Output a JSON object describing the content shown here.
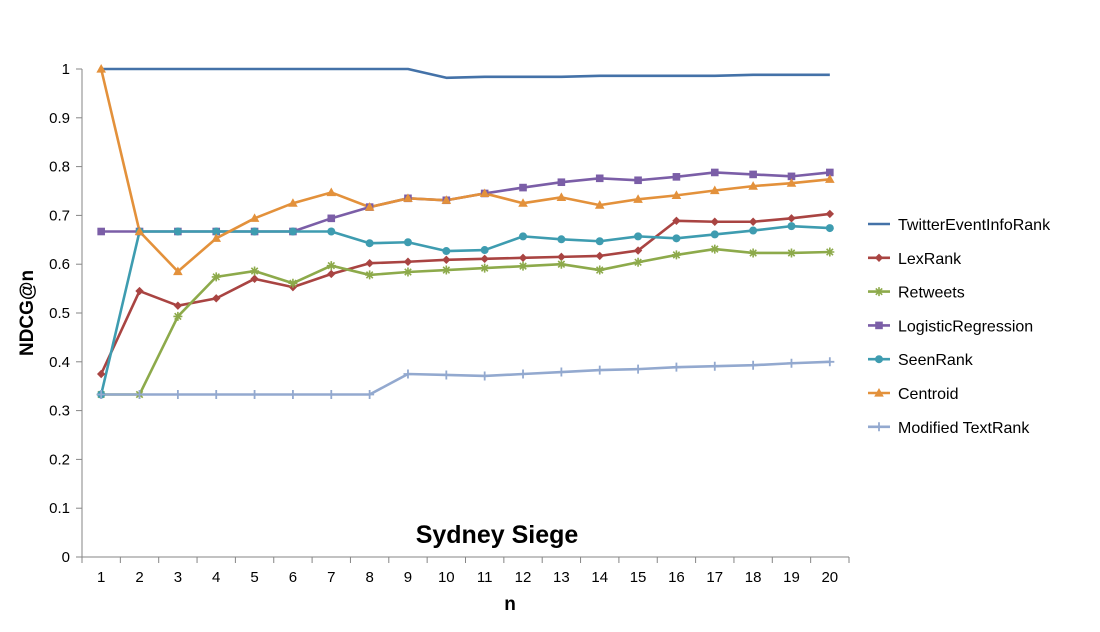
{
  "chart_data": {
    "type": "line",
    "title": "Sydney Siege",
    "xlabel": "n",
    "ylabel": "NDCG@n",
    "ylim": [
      0,
      1
    ],
    "yticks": [
      "0",
      "0.1",
      "0.2",
      "0.3",
      "0.4",
      "0.5",
      "0.6",
      "0.7",
      "0.8",
      "0.9",
      "1"
    ],
    "x": [
      "1",
      "2",
      "3",
      "4",
      "5",
      "6",
      "7",
      "8",
      "9",
      "10",
      "11",
      "12",
      "13",
      "14",
      "15",
      "16",
      "17",
      "18",
      "19",
      "20"
    ],
    "grid": false,
    "legend_position": "right",
    "series": [
      {
        "name": "TwitterEventInfoRank",
        "color": "#4472A8",
        "marker": "none",
        "values": [
          1,
          1,
          1,
          1,
          1,
          1,
          1,
          1,
          1,
          0.982,
          0.984,
          0.984,
          0.984,
          0.986,
          0.986,
          0.986,
          0.986,
          0.988,
          0.988,
          0.988
        ]
      },
      {
        "name": "LexRank",
        "color": "#A94442",
        "marker": "diamond",
        "values": [
          0.375,
          0.545,
          0.515,
          0.53,
          0.57,
          0.553,
          0.58,
          0.602,
          0.605,
          0.609,
          0.611,
          0.613,
          0.615,
          0.617,
          0.628,
          0.689,
          0.687,
          0.687,
          0.694,
          0.703
        ]
      },
      {
        "name": "Retweets",
        "color": "#8DAA4B",
        "marker": "star",
        "values": [
          0.333,
          0.333,
          0.493,
          0.574,
          0.586,
          0.561,
          0.597,
          0.578,
          0.584,
          0.588,
          0.592,
          0.596,
          0.6,
          0.588,
          0.604,
          0.619,
          0.631,
          0.623,
          0.623,
          0.625
        ]
      },
      {
        "name": "LogisticRegression",
        "color": "#7B5EA7",
        "marker": "square",
        "values": [
          0.667,
          0.667,
          0.667,
          0.667,
          0.667,
          0.667,
          0.694,
          0.717,
          0.735,
          0.731,
          0.745,
          0.757,
          0.768,
          0.776,
          0.772,
          0.779,
          0.788,
          0.784,
          0.78,
          0.788
        ]
      },
      {
        "name": "SeenRank",
        "color": "#3E9CB0",
        "marker": "circle",
        "values": [
          0.333,
          0.667,
          0.667,
          0.667,
          0.667,
          0.667,
          0.667,
          0.643,
          0.645,
          0.627,
          0.629,
          0.657,
          0.651,
          0.647,
          0.657,
          0.653,
          0.661,
          0.669,
          0.678,
          0.674
        ]
      },
      {
        "name": "Centroid",
        "color": "#E3913B",
        "marker": "triangle",
        "values": [
          1,
          0.667,
          0.585,
          0.653,
          0.694,
          0.725,
          0.747,
          0.717,
          0.735,
          0.731,
          0.745,
          0.725,
          0.737,
          0.721,
          0.733,
          0.741,
          0.751,
          0.76,
          0.766,
          0.774
        ]
      },
      {
        "name": "Modified TextRank",
        "color": "#93A9CF",
        "marker": "plus",
        "values": [
          0.333,
          0.333,
          0.333,
          0.333,
          0.333,
          0.333,
          0.333,
          0.333,
          0.375,
          0.373,
          0.371,
          0.375,
          0.379,
          0.383,
          0.385,
          0.389,
          0.391,
          0.393,
          0.397,
          0.4
        ]
      }
    ]
  }
}
